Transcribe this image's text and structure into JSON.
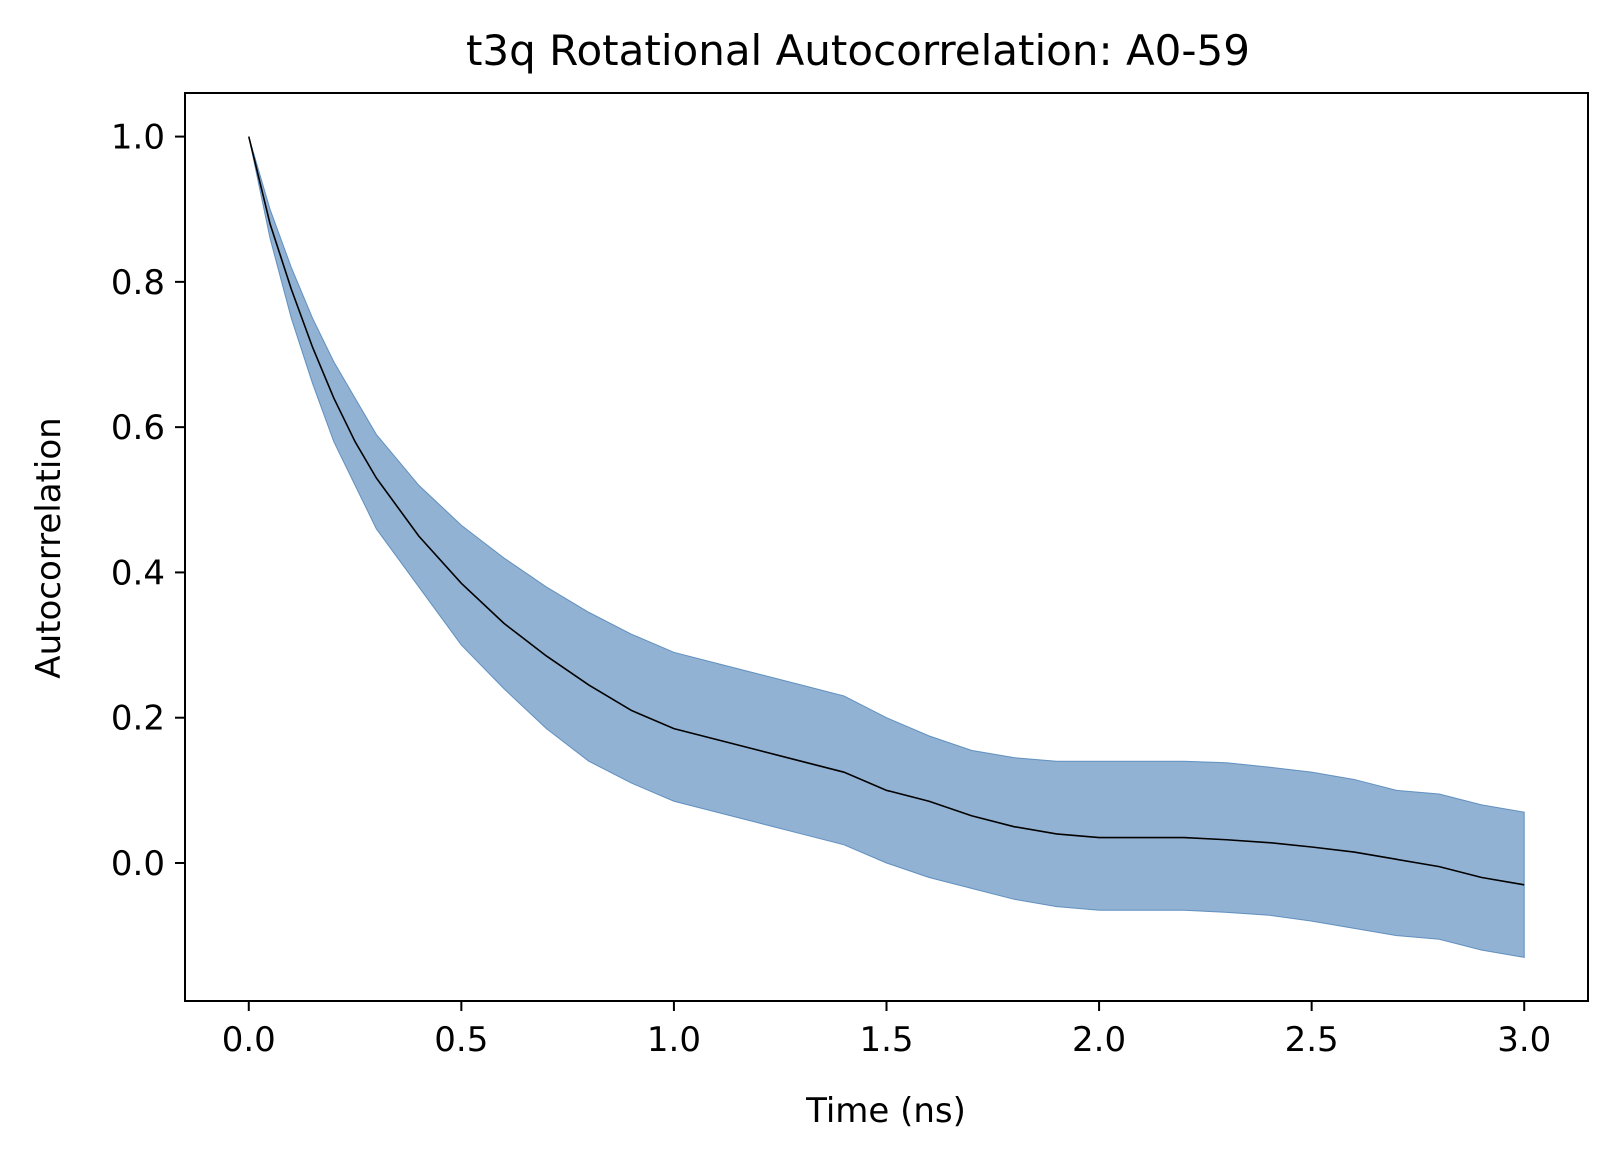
{
  "chart_data": {
    "type": "line",
    "title": "t3q Rotational Autocorrelation: A0-59",
    "xlabel": "Time (ns)",
    "ylabel": "Autocorrelation",
    "xlim": [
      -0.15,
      3.15
    ],
    "ylim": [
      -0.19,
      1.06
    ],
    "xticks": [
      0.0,
      0.5,
      1.0,
      1.5,
      2.0,
      2.5,
      3.0
    ],
    "xtick_labels": [
      "0.0",
      "0.5",
      "1.0",
      "1.5",
      "2.0",
      "2.5",
      "3.0"
    ],
    "yticks": [
      0.0,
      0.2,
      0.4,
      0.6,
      0.8,
      1.0
    ],
    "ytick_labels": [
      "0.0",
      "0.2",
      "0.4",
      "0.6",
      "0.8",
      "1.0"
    ],
    "grid": false,
    "series": [
      {
        "name": "mean",
        "color": "#000000",
        "x": [
          0.0,
          0.05,
          0.1,
          0.15,
          0.2,
          0.25,
          0.3,
          0.4,
          0.5,
          0.6,
          0.7,
          0.8,
          0.9,
          1.0,
          1.1,
          1.2,
          1.3,
          1.4,
          1.5,
          1.6,
          1.7,
          1.8,
          1.9,
          2.0,
          2.1,
          2.2,
          2.3,
          2.4,
          2.5,
          2.6,
          2.7,
          2.8,
          2.9,
          3.0
        ],
        "y": [
          1.0,
          0.88,
          0.79,
          0.71,
          0.64,
          0.58,
          0.53,
          0.45,
          0.385,
          0.33,
          0.285,
          0.245,
          0.21,
          0.185,
          0.17,
          0.155,
          0.14,
          0.125,
          0.1,
          0.085,
          0.065,
          0.05,
          0.04,
          0.035,
          0.035,
          0.035,
          0.032,
          0.028,
          0.022,
          0.015,
          0.005,
          -0.005,
          -0.02,
          -0.03
        ]
      }
    ],
    "band": {
      "name": "spread",
      "color": "#4a7fb5",
      "opacity": 0.6,
      "x": [
        0.0,
        0.05,
        0.1,
        0.15,
        0.2,
        0.25,
        0.3,
        0.4,
        0.5,
        0.6,
        0.7,
        0.8,
        0.9,
        1.0,
        1.1,
        1.2,
        1.3,
        1.4,
        1.5,
        1.6,
        1.7,
        1.8,
        1.9,
        2.0,
        2.1,
        2.2,
        2.3,
        2.4,
        2.5,
        2.6,
        2.7,
        2.8,
        2.9,
        3.0
      ],
      "upper": [
        1.0,
        0.9,
        0.82,
        0.75,
        0.69,
        0.64,
        0.59,
        0.52,
        0.465,
        0.42,
        0.38,
        0.345,
        0.315,
        0.29,
        0.275,
        0.26,
        0.245,
        0.23,
        0.2,
        0.175,
        0.155,
        0.145,
        0.14,
        0.14,
        0.14,
        0.14,
        0.138,
        0.132,
        0.125,
        0.115,
        0.1,
        0.095,
        0.08,
        0.07
      ],
      "lower": [
        1.0,
        0.86,
        0.75,
        0.66,
        0.58,
        0.52,
        0.46,
        0.38,
        0.3,
        0.24,
        0.185,
        0.14,
        0.11,
        0.085,
        0.07,
        0.055,
        0.04,
        0.025,
        0.0,
        -0.02,
        -0.035,
        -0.05,
        -0.06,
        -0.065,
        -0.065,
        -0.065,
        -0.068,
        -0.072,
        -0.08,
        -0.09,
        -0.1,
        -0.105,
        -0.12,
        -0.13
      ]
    }
  }
}
